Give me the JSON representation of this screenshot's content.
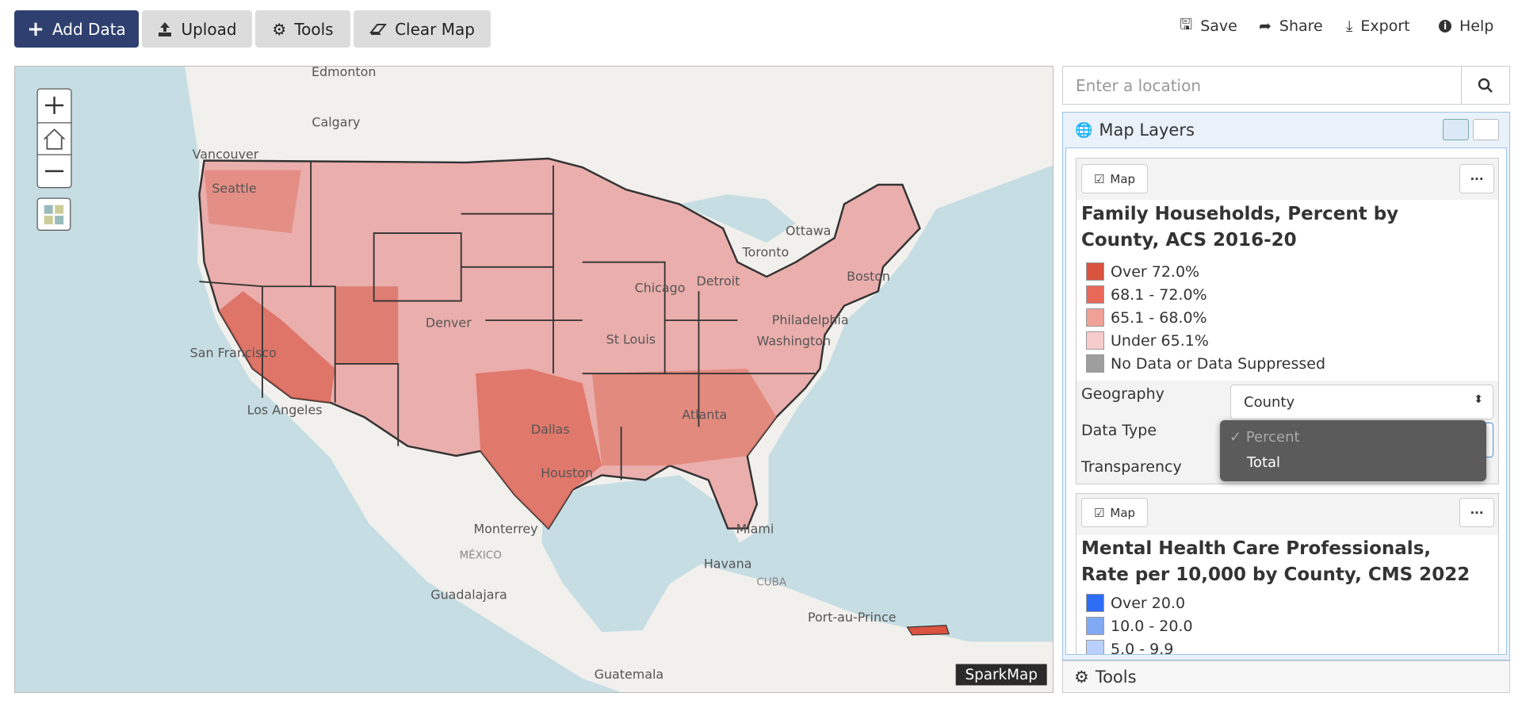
{
  "toolbar": {
    "buttons": [
      "Add Data",
      "Upload",
      "Tools",
      "Clear Map"
    ],
    "actions": [
      "Save",
      "Share",
      "Export",
      "Help"
    ]
  },
  "map": {
    "labels": [
      "Edmonton",
      "Calgary",
      "Vancouver",
      "Seattle",
      "Ottawa",
      "Toronto",
      "Detroit",
      "Chicago",
      "Boston",
      "Philadelphia",
      "Washington",
      "Denver",
      "St Louis",
      "San Francisco",
      "Los Angeles",
      "Dallas",
      "Atlanta",
      "Houston",
      "Miami",
      "Monterrey",
      "MÉXICO",
      "Havana",
      "CUBA",
      "Guadalajara",
      "Port-au-Prince",
      "Guatemala"
    ],
    "attribution": "SparkMap"
  },
  "search": {
    "placeholder": "Enter a location"
  },
  "panel": {
    "title": "Map Layers",
    "layers": [
      {
        "toggle": "Map",
        "title": [
          "Family Households, Percent by",
          "County, ACS 2016-20"
        ],
        "legend": [
          "Over 72.0%",
          "68.1 - 72.0%",
          "65.1 - 68.0%",
          "Under 65.1%",
          "No Data or Data Suppressed"
        ],
        "controls": {
          "geography_label": "Geography",
          "geography_value": "County",
          "data_type_label": "Data Type",
          "data_type_options": [
            "Percent",
            "Total"
          ],
          "transparency_label": "Transparency"
        }
      },
      {
        "toggle": "Map",
        "title": [
          "Mental Health Care Professionals,",
          "Rate per 10,000 by County, CMS 2022"
        ],
        "legend": [
          "Over 20.0",
          "10.0 - 20.0",
          "5.0 - 9.9"
        ]
      }
    ],
    "footer": "Tools"
  }
}
